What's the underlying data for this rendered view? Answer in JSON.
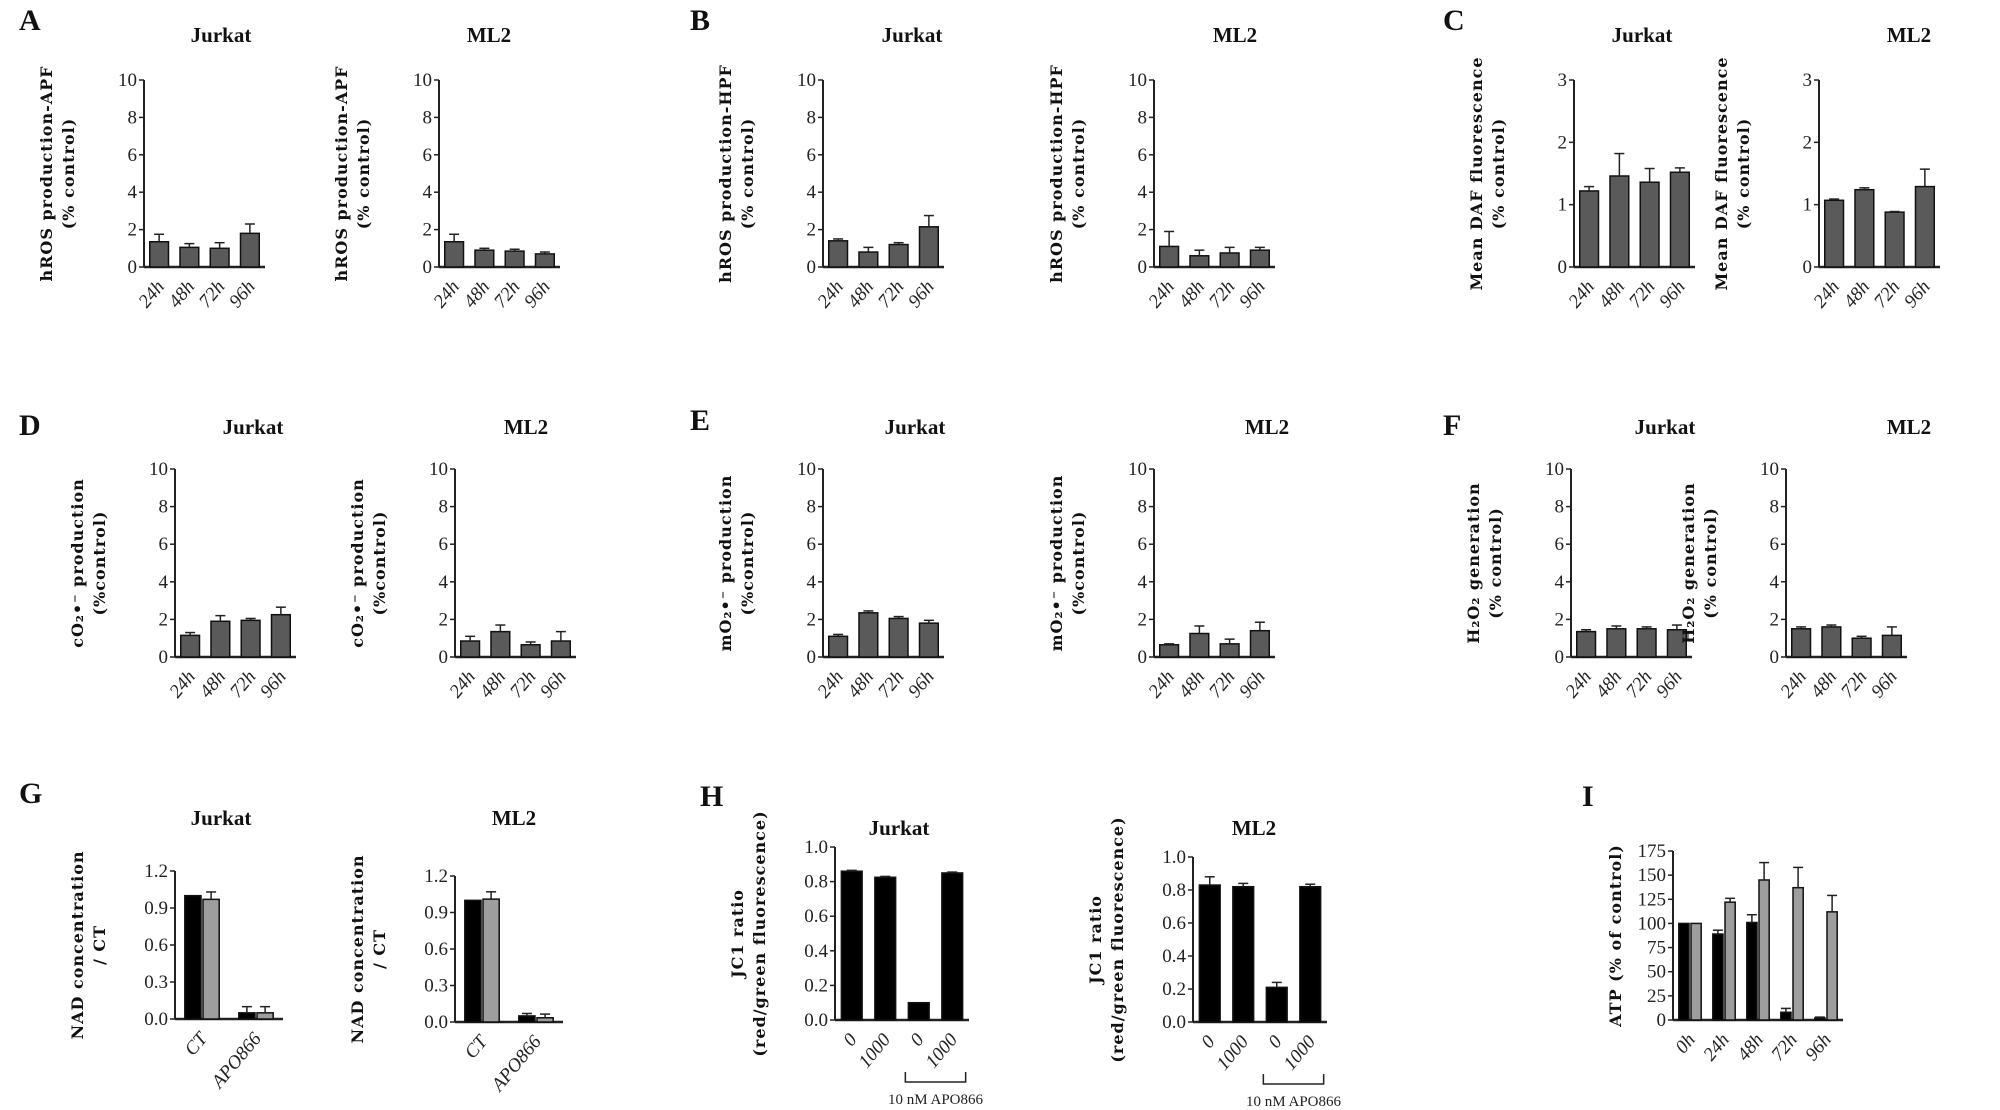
{
  "chart_data": [
    {
      "panel": "A",
      "type": "bar",
      "title": "Jurkat",
      "ylabel": [
        "hROS production-APF",
        "(% control)"
      ],
      "ylim": [
        0,
        10
      ],
      "yticks": [
        "0",
        "2",
        "4",
        "6",
        "8",
        "10"
      ],
      "categories": [
        "24h",
        "48h",
        "72h",
        "96h"
      ],
      "series": [
        {
          "values": [
            1.35,
            1.05,
            1.0,
            1.8
          ],
          "errors": [
            0.4,
            0.2,
            0.3,
            0.5
          ],
          "color": "#5a5a5a"
        }
      ]
    },
    {
      "type": "bar",
      "title": "ML2",
      "ylabel": [
        "hROS production-APF",
        "(% control)"
      ],
      "ylim": [
        0,
        10
      ],
      "yticks": [
        "0",
        "2",
        "4",
        "6",
        "8",
        "10"
      ],
      "categories": [
        "24h",
        "48h",
        "72h",
        "96h"
      ],
      "series": [
        {
          "values": [
            1.35,
            0.9,
            0.85,
            0.7
          ],
          "errors": [
            0.4,
            0.1,
            0.1,
            0.1
          ],
          "color": "#5a5a5a"
        }
      ]
    },
    {
      "panel": "B",
      "type": "bar",
      "title": "Jurkat",
      "ylabel": [
        "hROS production-HPF",
        "(% control)"
      ],
      "ylim": [
        0,
        10
      ],
      "yticks": [
        "0",
        "2",
        "4",
        "6",
        "8",
        "10"
      ],
      "categories": [
        "24h",
        "48h",
        "72h",
        "96h"
      ],
      "series": [
        {
          "values": [
            1.4,
            0.8,
            1.2,
            2.15
          ],
          "errors": [
            0.1,
            0.25,
            0.1,
            0.6
          ],
          "color": "#5a5a5a"
        }
      ]
    },
    {
      "type": "bar",
      "title": "ML2",
      "ylabel": [
        "hROS production-HPF",
        "(% control)"
      ],
      "ylim": [
        0,
        10
      ],
      "yticks": [
        "0",
        "2",
        "4",
        "6",
        "8",
        "10"
      ],
      "categories": [
        "24h",
        "48h",
        "72h",
        "96h"
      ],
      "series": [
        {
          "values": [
            1.1,
            0.6,
            0.75,
            0.9
          ],
          "errors": [
            0.8,
            0.3,
            0.3,
            0.15
          ],
          "color": "#5a5a5a"
        }
      ]
    },
    {
      "panel": "C",
      "type": "bar",
      "title": "Jurkat",
      "ylabel": [
        "Mean DAF fluorescence",
        "(% control)"
      ],
      "ylim": [
        0,
        3
      ],
      "yticks": [
        "0",
        "1",
        "2",
        "3"
      ],
      "categories": [
        "24h",
        "48h",
        "72h",
        "96h"
      ],
      "series": [
        {
          "values": [
            1.22,
            1.46,
            1.36,
            1.52
          ],
          "errors": [
            0.07,
            0.36,
            0.22,
            0.07
          ],
          "color": "#5a5a5a"
        }
      ]
    },
    {
      "type": "bar",
      "title": "ML2",
      "ylabel": [
        "Mean DAF fluorescence",
        "(% control)"
      ],
      "ylim": [
        0,
        3
      ],
      "yticks": [
        "0",
        "1",
        "2",
        "3"
      ],
      "categories": [
        "24h",
        "48h",
        "72h",
        "96h"
      ],
      "series": [
        {
          "values": [
            1.07,
            1.24,
            0.88,
            1.29
          ],
          "errors": [
            0.02,
            0.03,
            0.01,
            0.28
          ],
          "color": "#5a5a5a"
        }
      ]
    },
    {
      "panel": "D",
      "type": "bar",
      "title": "Jurkat",
      "ylabel": [
        "cO₂•⁻ production",
        "(%control)"
      ],
      "ylim": [
        0,
        10
      ],
      "yticks": [
        "0",
        "2",
        "4",
        "6",
        "8",
        "10"
      ],
      "categories": [
        "24h",
        "48h",
        "72h",
        "96h"
      ],
      "series": [
        {
          "values": [
            1.15,
            1.9,
            1.95,
            2.25
          ],
          "errors": [
            0.15,
            0.3,
            0.1,
            0.4
          ],
          "color": "#5a5a5a"
        }
      ]
    },
    {
      "type": "bar",
      "title": "ML2",
      "ylabel": [
        "cO₂•⁻ production",
        "(%control)"
      ],
      "ylim": [
        0,
        10
      ],
      "yticks": [
        "0",
        "2",
        "4",
        "6",
        "8",
        "10"
      ],
      "categories": [
        "24h",
        "48h",
        "72h",
        "96h"
      ],
      "series": [
        {
          "values": [
            0.85,
            1.35,
            0.65,
            0.85
          ],
          "errors": [
            0.25,
            0.35,
            0.15,
            0.5
          ],
          "color": "#5a5a5a"
        }
      ]
    },
    {
      "panel": "E",
      "type": "bar",
      "title": "Jurkat",
      "ylabel": [
        "mO₂•⁻ production",
        "(%control)"
      ],
      "ylim": [
        0,
        10
      ],
      "yticks": [
        "0",
        "2",
        "4",
        "6",
        "8",
        "10"
      ],
      "categories": [
        "24h",
        "48h",
        "72h",
        "96h"
      ],
      "series": [
        {
          "values": [
            1.1,
            2.35,
            2.05,
            1.8
          ],
          "errors": [
            0.1,
            0.1,
            0.1,
            0.15
          ],
          "color": "#5a5a5a"
        }
      ]
    },
    {
      "type": "bar",
      "title": "ML2",
      "ylabel": [
        "mO₂•⁻ production",
        "(%control)"
      ],
      "ylim": [
        0,
        10
      ],
      "yticks": [
        "0",
        "2",
        "4",
        "6",
        "8",
        "10"
      ],
      "categories": [
        "24h",
        "48h",
        "72h",
        "96h"
      ],
      "series": [
        {
          "values": [
            0.65,
            1.25,
            0.7,
            1.4
          ],
          "errors": [
            0.05,
            0.4,
            0.25,
            0.45
          ],
          "color": "#5a5a5a"
        }
      ]
    },
    {
      "panel": "F",
      "type": "bar",
      "title": "Jurkat",
      "ylabel": [
        "H₂O₂ generation",
        "(% control)"
      ],
      "ylim": [
        0,
        10
      ],
      "yticks": [
        "0",
        "2",
        "4",
        "6",
        "8",
        "10"
      ],
      "categories": [
        "24h",
        "48h",
        "72h",
        "96h"
      ],
      "series": [
        {
          "values": [
            1.35,
            1.5,
            1.5,
            1.45
          ],
          "errors": [
            0.1,
            0.15,
            0.1,
            0.25
          ],
          "color": "#5a5a5a"
        }
      ]
    },
    {
      "type": "bar",
      "title": "ML2",
      "ylabel": [
        "H₂O₂ generation",
        "(% control)"
      ],
      "ylim": [
        0,
        10
      ],
      "yticks": [
        "0",
        "2",
        "4",
        "6",
        "8",
        "10"
      ],
      "categories": [
        "24h",
        "48h",
        "72h",
        "96h"
      ],
      "series": [
        {
          "values": [
            1.5,
            1.6,
            1.0,
            1.15
          ],
          "errors": [
            0.1,
            0.1,
            0.1,
            0.45
          ],
          "color": "#5a5a5a"
        }
      ]
    },
    {
      "panel": "G",
      "type": "bar",
      "title": "Jurkat",
      "ylabel": [
        "NAD concentration",
        "/ CT"
      ],
      "ylim": [
        0,
        1.2
      ],
      "yticks": [
        "0.0",
        "0.3",
        "0.6",
        "0.9",
        "1.2"
      ],
      "categories": [
        "CT",
        "APO866"
      ],
      "series": [
        {
          "values": [
            1.0,
            0.05
          ],
          "errors": [
            0,
            0.05
          ],
          "color": "#000000"
        },
        {
          "values": [
            0.97,
            0.05
          ],
          "errors": [
            0.06,
            0.05
          ],
          "color": "#9e9e9e"
        }
      ]
    },
    {
      "type": "bar",
      "title": "ML2",
      "ylabel": [
        "NAD concentration",
        "/ CT"
      ],
      "ylim": [
        0,
        1.2
      ],
      "yticks": [
        "0.0",
        "0.3",
        "0.6",
        "0.9",
        "1.2"
      ],
      "categories": [
        "CT",
        "APO866"
      ],
      "series": [
        {
          "values": [
            1.0,
            0.05
          ],
          "errors": [
            0,
            0.02
          ],
          "color": "#000000"
        },
        {
          "values": [
            1.01,
            0.035
          ],
          "errors": [
            0.06,
            0.03
          ],
          "color": "#9e9e9e"
        }
      ]
    },
    {
      "panel": "H",
      "type": "bar",
      "title": "Jurkat",
      "ylabel": [
        "JC1 ratio",
        "(red/green fluorescence)"
      ],
      "ylim": [
        0,
        1.0
      ],
      "yticks": [
        "0.0",
        "0.2",
        "0.4",
        "0.6",
        "0.8",
        "1.0"
      ],
      "categories": [
        "0",
        "1000",
        "0",
        "1000"
      ],
      "bracket_label": "10 nM APO866",
      "series": [
        {
          "values": [
            0.86,
            0.825,
            0.1,
            0.85
          ],
          "errors": [
            0.005,
            0.005,
            0,
            0.005
          ],
          "color": "#000000"
        }
      ]
    },
    {
      "type": "bar",
      "title": "ML2",
      "ylabel": [
        "JC1 ratio",
        "(red/green fluorescence)"
      ],
      "ylim": [
        0,
        1.0
      ],
      "yticks": [
        "0.0",
        "0.2",
        "0.4",
        "0.6",
        "0.8",
        "1.0"
      ],
      "categories": [
        "0",
        "1000",
        "0",
        "1000"
      ],
      "bracket_label": "10 nM APO866",
      "series": [
        {
          "values": [
            0.83,
            0.82,
            0.21,
            0.82
          ],
          "errors": [
            0.05,
            0.02,
            0.03,
            0.015
          ],
          "color": "#000000"
        }
      ]
    },
    {
      "panel": "I",
      "type": "bar",
      "title": "",
      "ylabel": [
        "ATP (% of control)"
      ],
      "ylim": [
        0,
        175
      ],
      "yticks": [
        "0",
        "25",
        "50",
        "75",
        "100",
        "125",
        "150",
        "175"
      ],
      "categories": [
        "0h",
        "24h",
        "48h",
        "72h",
        "96h"
      ],
      "series": [
        {
          "values": [
            100,
            89,
            101,
            8,
            2
          ],
          "errors": [
            0,
            4,
            8,
            4,
            1
          ],
          "color": "#000000"
        },
        {
          "values": [
            100,
            122,
            145,
            137,
            112
          ],
          "errors": [
            0,
            4,
            18,
            21,
            17
          ],
          "color": "#9e9e9e"
        }
      ]
    }
  ]
}
